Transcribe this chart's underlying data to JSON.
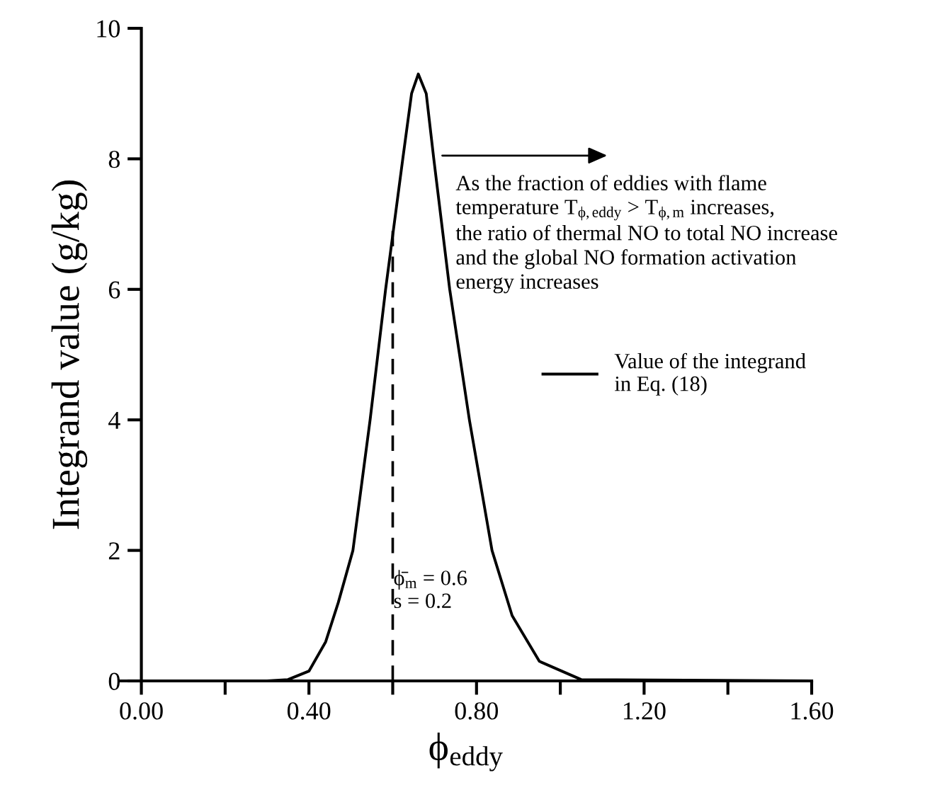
{
  "chart_data": {
    "type": "line",
    "xlabel": "ϕ$_{eddy}$",
    "ylabel": "Integrand value (g/kg)",
    "xlim": [
      -0.05,
      1.6
    ],
    "ylim": [
      0,
      10
    ],
    "xticks": [
      {
        "value": 0,
        "label": "0.00"
      },
      {
        "value": 0.2,
        "label": null
      },
      {
        "value": 0.4,
        "label": "0.40"
      },
      {
        "value": 0.6,
        "label": null
      },
      {
        "value": 0.8,
        "label": "0.80"
      },
      {
        "value": 1.0,
        "label": null
      },
      {
        "value": 1.2,
        "label": "1.20"
      },
      {
        "value": 1.4,
        "label": null
      },
      {
        "value": 1.6,
        "label": "1.60"
      }
    ],
    "yticks": [
      0,
      2,
      4,
      6,
      8,
      10
    ],
    "series": [
      {
        "name": "Value of the integrand\nin Eq. (18)",
        "color": "#000000",
        "x": [
          0.0,
          0.3,
          0.35,
          0.4,
          0.44,
          0.47,
          0.505,
          0.546,
          0.583,
          0.624,
          0.645,
          0.661,
          0.68,
          0.698,
          0.736,
          0.783,
          0.837,
          0.885,
          0.95,
          1.05,
          1.6
        ],
        "values": [
          0,
          0,
          0.02,
          0.15,
          0.6,
          1.2,
          2,
          4,
          6,
          8,
          9.0,
          9.3,
          9.0,
          8,
          6,
          4,
          2,
          1,
          0.3,
          0.02,
          0
        ]
      }
    ],
    "ref_lines": [
      {
        "axis": "x",
        "value": 0.6,
        "color": "#000000",
        "line_style": "dashed"
      }
    ],
    "legend": "right",
    "marker": "none",
    "grid": false,
    "annotations": [
      "As the fraction of eddies with flame\ntemperature T$_{ϕ,eddy}$ > T$_{ϕ,m}$ increases,\nthe ratio of thermal NO to total NO increase\nand the global NO formation activation\nenergy increases",
      "ϕ̄$_{m}$ = 0.6\ns = 0.2"
    ]
  }
}
